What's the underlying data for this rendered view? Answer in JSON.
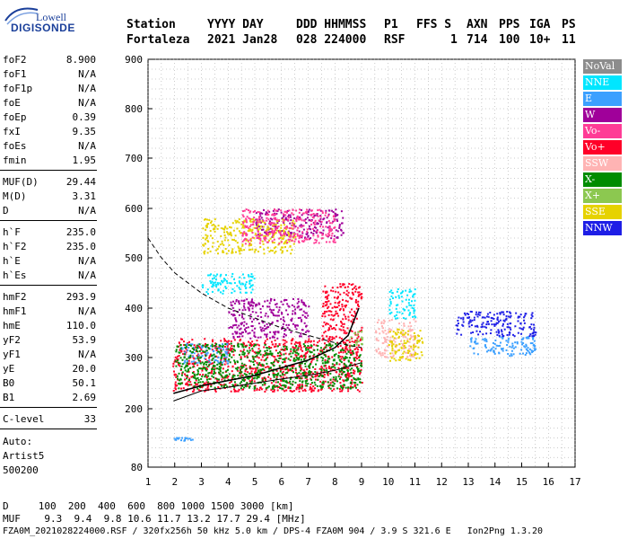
{
  "logo": {
    "line1": "Lowell",
    "line2": "DIGISONDE"
  },
  "header": {
    "row1": [
      "Station",
      "YYYY DAY",
      "DDD HHMMSS",
      "P1",
      "FFS S",
      "AXN",
      "PPS",
      "IGA",
      "PS"
    ],
    "row2": [
      "Fortaleza",
      "2021 Jan28",
      "028 224000",
      "RSF",
      "1",
      "714",
      "100",
      "10+",
      "11"
    ]
  },
  "params": [
    {
      "k": "foF2",
      "v": "8.900"
    },
    {
      "k": "foF1",
      "v": "N/A"
    },
    {
      "k": "foF1p",
      "v": "N/A"
    },
    {
      "k": "foE",
      "v": "N/A"
    },
    {
      "k": "foEp",
      "v": "0.39"
    },
    {
      "k": "fxI",
      "v": "9.35"
    },
    {
      "k": "foEs",
      "v": "N/A"
    },
    {
      "k": "fmin",
      "v": "1.95"
    },
    {
      "k": "MUF(D)",
      "v": "29.44"
    },
    {
      "k": "M(D)",
      "v": "3.31"
    },
    {
      "k": "D",
      "v": "N/A"
    },
    {
      "k": "h`F",
      "v": "235.0"
    },
    {
      "k": "h`F2",
      "v": "235.0"
    },
    {
      "k": "h`E",
      "v": "N/A"
    },
    {
      "k": "h`Es",
      "v": "N/A"
    },
    {
      "k": "hmF2",
      "v": "293.9"
    },
    {
      "k": "hmF1",
      "v": "N/A"
    },
    {
      "k": "hmE",
      "v": "110.0"
    },
    {
      "k": "yF2",
      "v": "53.9"
    },
    {
      "k": "yF1",
      "v": "N/A"
    },
    {
      "k": "yE",
      "v": "20.0"
    },
    {
      "k": "B0",
      "v": "50.1"
    },
    {
      "k": "B1",
      "v": "2.69"
    },
    {
      "k": "C-level",
      "v": "33"
    }
  ],
  "auto": {
    "line1": "Auto:",
    "line2": "Artist5",
    "line3": "500200"
  },
  "legend": [
    {
      "label": "NoVal",
      "color": "#8c8c8c"
    },
    {
      "label": "NNE",
      "color": "#00e6ff"
    },
    {
      "label": "E",
      "color": "#3ca0ff"
    },
    {
      "label": "W",
      "color": "#a0009a"
    },
    {
      "label": "Vo-",
      "color": "#ff3c96"
    },
    {
      "label": "Vo+",
      "color": "#ff0028"
    },
    {
      "label": "SSW",
      "color": "#ffb4b4"
    },
    {
      "label": "X-",
      "color": "#008c00"
    },
    {
      "label": "X+",
      "color": "#8cc850"
    },
    {
      "label": "SSE",
      "color": "#e6d200"
    },
    {
      "label": "NNW",
      "color": "#1e1ee6"
    }
  ],
  "bottom": {
    "d_row": "D     100  200  400  600  800 1000 1500 3000 [km]",
    "muf_row": "MUF    9.3  9.4  9.8 10.6 11.7 13.2 17.7 29.4 [MHz]",
    "footer": "FZA0M_2021028224000.RSF / 320fx256h 50 kHz 5.0 km / DPS-4 FZA0M 904 / 3.9 S 321.6 E   Ion2Png 1.3.20"
  },
  "chart_data": {
    "type": "scatter",
    "title": "",
    "xlabel": "",
    "ylabel": "",
    "xlim": [
      1,
      17
    ],
    "ylim": [
      80,
      900
    ],
    "x_ticks": [
      1,
      2,
      3,
      4,
      5,
      6,
      7,
      8,
      9,
      10,
      11,
      12,
      13,
      14,
      15,
      16,
      17
    ],
    "y_ticks": [
      80,
      200,
      300,
      400,
      500,
      600,
      700,
      800,
      900
    ],
    "grid": true,
    "series": [
      {
        "name": "Vo+",
        "color": "#ff0028",
        "clusters": [
          {
            "x": [
              1.9,
              9.0
            ],
            "y": [
              235,
              340
            ]
          },
          {
            "x": [
              7.5,
              9.0
            ],
            "y": [
              330,
              450
            ]
          }
        ]
      },
      {
        "name": "E",
        "color": "#3ca0ff",
        "clusters": [
          {
            "x": [
              2.2,
              4.0
            ],
            "y": [
              290,
              330
            ]
          },
          {
            "x": [
              1.9,
              2.8
            ],
            "y": [
              135,
              142
            ]
          },
          {
            "x": [
              13.0,
              15.5
            ],
            "y": [
              305,
              345
            ]
          }
        ]
      },
      {
        "name": "NNW",
        "color": "#1e1ee6",
        "clusters": [
          {
            "x": [
              12.5,
              15.5
            ],
            "y": [
              345,
              395
            ]
          }
        ]
      },
      {
        "name": "W",
        "color": "#a0009a",
        "clusters": [
          {
            "x": [
              4.0,
              7.0
            ],
            "y": [
              340,
              420
            ]
          },
          {
            "x": [
              5.0,
              8.3
            ],
            "y": [
              540,
              600
            ]
          }
        ]
      },
      {
        "name": "SSW",
        "color": "#ffb4b4",
        "clusters": [
          {
            "x": [
              9.5,
              11.0
            ],
            "y": [
              300,
              380
            ]
          }
        ]
      },
      {
        "name": "SSE",
        "color": "#e6d200",
        "clusters": [
          {
            "x": [
              10.0,
              11.3
            ],
            "y": [
              295,
              360
            ]
          },
          {
            "x": [
              3.0,
              6.5
            ],
            "y": [
              510,
              580
            ]
          }
        ]
      },
      {
        "name": "Vo-",
        "color": "#ff3c96",
        "clusters": [
          {
            "x": [
              4.5,
              8.0
            ],
            "y": [
              530,
              600
            ]
          }
        ]
      },
      {
        "name": "NNE",
        "color": "#00e6ff",
        "clusters": [
          {
            "x": [
              3.0,
              5.0
            ],
            "y": [
              430,
              470
            ]
          },
          {
            "x": [
              10.0,
              11.0
            ],
            "y": [
              380,
              440
            ]
          }
        ]
      },
      {
        "name": "X-",
        "color": "#008c00",
        "clusters": [
          {
            "x": [
              2.0,
              9.0
            ],
            "y": [
              240,
              330
            ]
          }
        ]
      },
      {
        "name": "X+",
        "color": "#8cc850",
        "clusters": [
          {
            "x": [
              8.5,
              9.0
            ],
            "y": [
              320,
              360
            ]
          }
        ]
      }
    ],
    "profile_curve": {
      "x": [
        1.95,
        3,
        4,
        5,
        6,
        7,
        8,
        8.5,
        8.9
      ],
      "y": [
        230,
        245,
        255,
        265,
        280,
        295,
        320,
        345,
        400
      ]
    },
    "solid_curve": {
      "x": [
        1.95,
        3,
        4,
        5,
        6,
        7,
        8,
        9
      ],
      "y": [
        215,
        235,
        242,
        250,
        258,
        265,
        275,
        290
      ]
    },
    "dashed_curve": {
      "x": [
        1,
        1.5,
        2,
        3,
        4,
        5,
        6,
        7,
        8,
        9
      ],
      "y": [
        540,
        500,
        470,
        430,
        400,
        380,
        360,
        345,
        330,
        320
      ]
    }
  }
}
